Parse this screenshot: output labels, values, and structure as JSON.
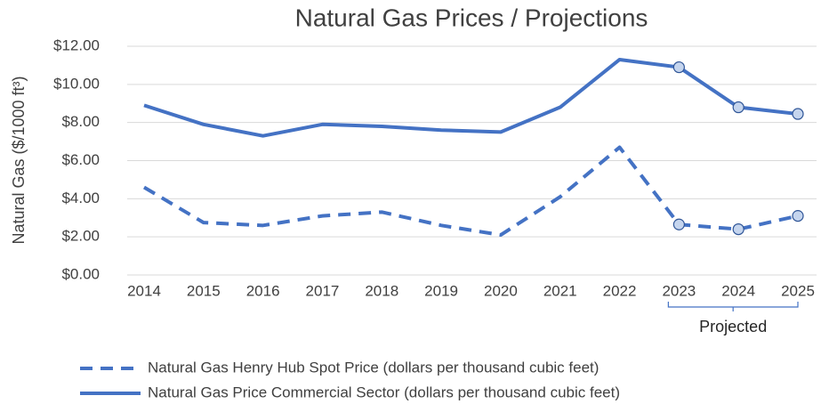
{
  "chart_data": {
    "type": "line",
    "title": "Natural Gas Prices / Projections",
    "y_label": "Natural Gas ($/1000 ft³)",
    "categories": [
      "2014",
      "2015",
      "2016",
      "2017",
      "2018",
      "2019",
      "2020",
      "2021",
      "2022",
      "2023",
      "2024",
      "2025"
    ],
    "series": [
      {
        "name": "Natural Gas Henry Hub Spot Price (dollars per thousand cubic feet)",
        "color": "#4472c4",
        "dash": "dashed",
        "values": [
          4.6,
          2.75,
          2.6,
          3.1,
          3.3,
          2.6,
          2.1,
          4.1,
          6.7,
          2.65,
          2.4,
          3.1
        ]
      },
      {
        "name": "Natural Gas Price Commercial Sector (dollars per thousand cubic feet)",
        "color": "#4472c4",
        "dash": "solid",
        "values": [
          8.9,
          7.9,
          7.3,
          7.9,
          7.8,
          7.6,
          7.5,
          8.8,
          11.3,
          10.9,
          8.8,
          8.45
        ]
      }
    ],
    "ylim": [
      0,
      12
    ],
    "yticks": [
      {
        "value": 0,
        "label": "$0.00"
      },
      {
        "value": 2,
        "label": "$2.00"
      },
      {
        "value": 4,
        "label": "$4.00"
      },
      {
        "value": 6,
        "label": "$6.00"
      },
      {
        "value": 8,
        "label": "$8.00"
      },
      {
        "value": 10,
        "label": "$10.00"
      },
      {
        "value": 12,
        "label": "$12.00"
      }
    ],
    "grid": true,
    "legend": "bottom",
    "annotation": {
      "text": "Projected",
      "from": "2023",
      "to": "2025"
    }
  }
}
